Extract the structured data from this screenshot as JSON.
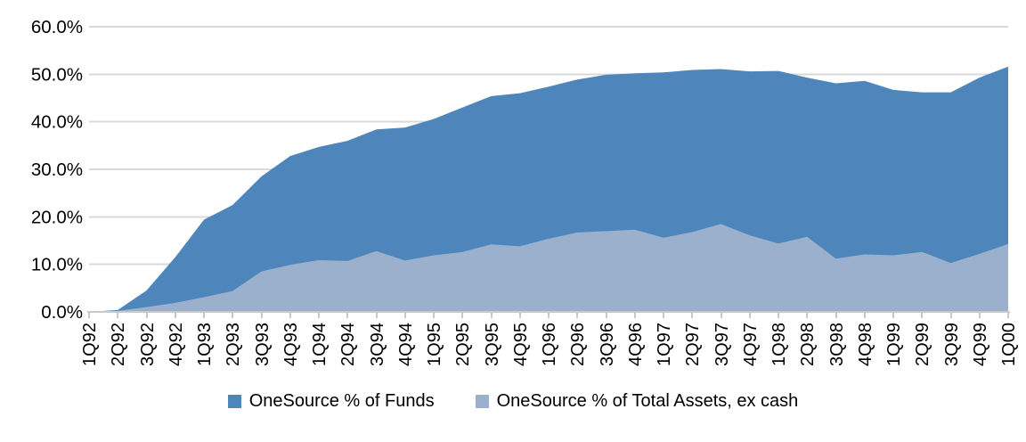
{
  "chart_data": {
    "type": "area",
    "mode": "overlay",
    "title": "",
    "xlabel": "",
    "ylabel": "",
    "ylim": [
      0,
      60
    ],
    "ytick_step": 10,
    "ytick_labels": [
      "0.0%",
      "10.0%",
      "20.0%",
      "30.0%",
      "40.0%",
      "50.0%",
      "60.0%"
    ],
    "grid": "horizontal",
    "legend_position": "bottom",
    "categories": [
      "1Q92",
      "2Q92",
      "3Q92",
      "4Q92",
      "1Q93",
      "2Q93",
      "3Q93",
      "4Q93",
      "1Q94",
      "2Q94",
      "3Q94",
      "4Q94",
      "1Q95",
      "2Q95",
      "3Q95",
      "4Q95",
      "1Q96",
      "2Q96",
      "3Q96",
      "4Q96",
      "1Q97",
      "2Q97",
      "3Q97",
      "4Q97",
      "1Q98",
      "2Q98",
      "3Q98",
      "4Q98",
      "1Q99",
      "2Q99",
      "3Q99",
      "4Q99",
      "1Q00"
    ],
    "series": [
      {
        "name": "OneSource % of Funds",
        "color": "#4E86BC",
        "values": [
          0.0,
          0.4,
          4.5,
          11.5,
          19.4,
          22.5,
          28.5,
          32.8,
          34.7,
          36.0,
          38.4,
          38.8,
          40.6,
          43.0,
          45.4,
          46.0,
          47.4,
          48.9,
          49.9,
          50.2,
          50.4,
          50.9,
          51.1,
          50.6,
          50.7,
          49.3,
          48.1,
          48.6,
          46.7,
          46.2,
          46.2,
          49.3,
          51.6
        ]
      },
      {
        "name": "OneSource % of Total Assets, ex cash",
        "color": "#9BB0CD",
        "values": [
          0.0,
          0.2,
          1.0,
          1.9,
          3.1,
          4.4,
          8.5,
          9.9,
          10.9,
          10.7,
          12.8,
          10.8,
          11.9,
          12.6,
          14.2,
          13.8,
          15.4,
          16.7,
          17.0,
          17.3,
          15.6,
          16.8,
          18.5,
          16.1,
          14.4,
          15.8,
          11.2,
          12.1,
          11.9,
          12.6,
          10.3,
          12.2,
          14.3
        ]
      }
    ],
    "colors": {
      "gridline": "#D9D9D9",
      "axis_line": "#C9C9C9",
      "tick_mark": "#C9C9C9",
      "text": "#000000",
      "background": "#FFFFFF"
    }
  },
  "legend": {
    "items": [
      {
        "label": "OneSource % of Funds"
      },
      {
        "label": "OneSource % of Total Assets, ex cash"
      }
    ]
  }
}
